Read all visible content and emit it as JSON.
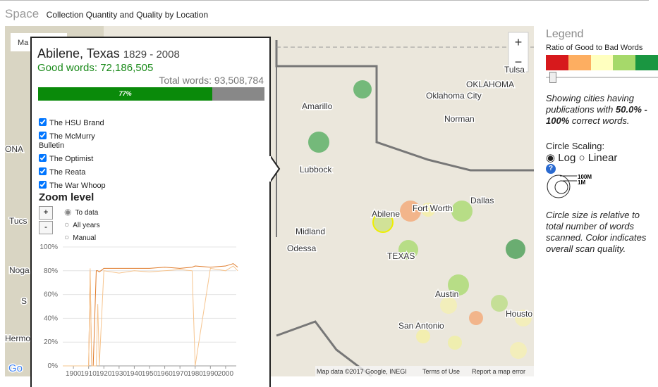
{
  "header": {
    "title": "Space",
    "subtitle": "Collection Quantity and Quality by Location"
  },
  "map": {
    "map_type_button": "Ma",
    "zoom_in": "+",
    "zoom_out": "−",
    "labels": [
      "Tulsa",
      "OKLAHOMA",
      "Oklahoma City",
      "Norman",
      "Amarillo",
      "Lubbock",
      "Dallas",
      "Fort Worth",
      "Abilene",
      "Midland",
      "Odessa",
      "TEXAS",
      "Austin",
      "San Antonio",
      "Housto",
      "Tucs",
      "Noga",
      "Hermo",
      "ONA",
      "S"
    ],
    "footer": {
      "logo": "Go",
      "attribution": "Map data ©2017 Google, INEGI",
      "terms": "Terms of Use",
      "report": "Report a map error"
    }
  },
  "popup": {
    "city": "Abilene, Texas",
    "years": "1829 - 2008",
    "good_words": "Good words: 72,186,505",
    "total_words": "Total words: 93,508,784",
    "percent": 77,
    "percent_label": "77%",
    "publications": [
      "The HSU Brand",
      "The McMurry Bulletin",
      "The Optimist",
      "The Reata",
      "The War Whoop"
    ],
    "zoom": {
      "title": "Zoom level",
      "plus": "+",
      "minus": "-",
      "options": [
        "To data",
        "All years",
        "Manual"
      ]
    },
    "chart_data": {
      "type": "line",
      "x": [
        1893,
        1905,
        1910,
        1911,
        1912,
        1913,
        1915,
        1916,
        1917,
        1920,
        1930,
        1940,
        1950,
        1960,
        1970,
        1978,
        1980,
        1990,
        2000,
        2005,
        2008
      ],
      "series": [
        {
          "color": "#e07b2a",
          "values": [
            0,
            0,
            0,
            80,
            0,
            0,
            80,
            80,
            79,
            82,
            82,
            82,
            82,
            83,
            82,
            83,
            84,
            83,
            84,
            86,
            83
          ]
        },
        {
          "color": "#f6c48e",
          "values": [
            0,
            0,
            0,
            82,
            0,
            0,
            0,
            52,
            0,
            80,
            78,
            80,
            79,
            80,
            81,
            80,
            0,
            82,
            80,
            84,
            80
          ]
        }
      ],
      "xlim": [
        1893,
        2007
      ],
      "xticks": [
        1900,
        1910,
        1920,
        1930,
        1940,
        1950,
        1960,
        1970,
        1980,
        1990,
        2000
      ],
      "ylim": [
        0,
        100
      ],
      "yticks": [
        {
          "value": 0,
          "label": "0%"
        },
        {
          "value": 20,
          "label": "20%"
        },
        {
          "value": 40,
          "label": "40%"
        },
        {
          "value": 60,
          "label": "60%"
        },
        {
          "value": 80,
          "label": "80%"
        },
        {
          "value": 100,
          "label": "100%"
        }
      ],
      "grid": true
    }
  },
  "legend": {
    "title": "Legend",
    "scale_title": "Ratio of Good to Bad Words",
    "scale_colors": [
      "#d7191c",
      "#fdae61",
      "#ffffbf",
      "#a6d96a",
      "#1a9641"
    ],
    "showing_pre": "Showing cities having publications with",
    "showing_range": "50.0% - 100%",
    "showing_post": "correct words.",
    "circle_scaling": "Circle Scaling:",
    "log": "Log",
    "linear": "Linear",
    "help": "?",
    "size_big": "100M",
    "size_small": "1M",
    "note": "Circle size is relative to total number of words scanned. Color indicates overall scan quality."
  }
}
